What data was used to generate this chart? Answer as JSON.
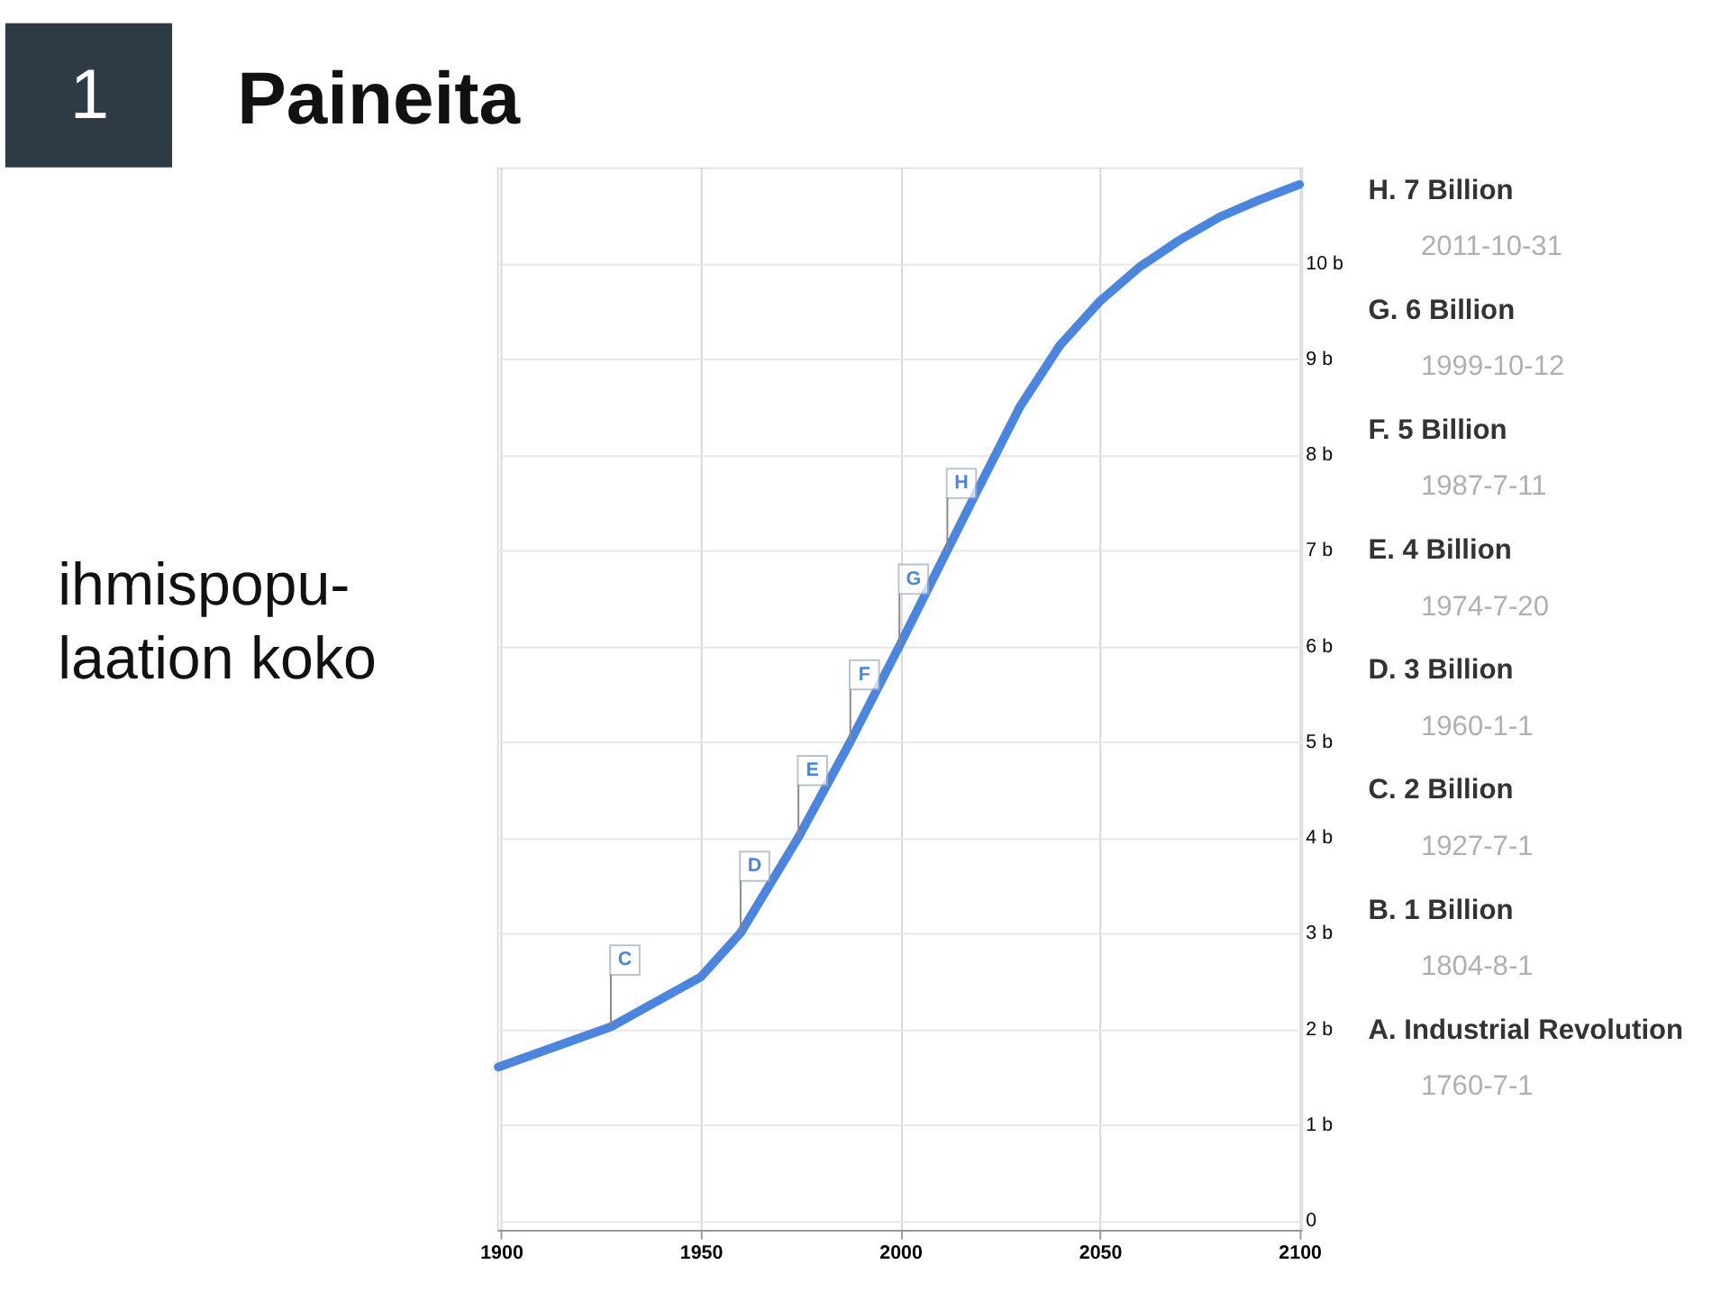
{
  "chart_data": [
    {
      "type": "line",
      "title": "Paineita",
      "ylabel": "ihmispopu-\nlaation koko",
      "color": "#4a86e0",
      "x": [
        1899.3,
        1927.5,
        1950,
        1960,
        1974.5,
        1987.5,
        1999.8,
        2011.8,
        2020,
        2030,
        2040,
        2050,
        2060,
        2070,
        2080,
        2090,
        2100
      ],
      "values": [
        1.6,
        2.02,
        2.54,
        3.0,
        4.0,
        5.0,
        6.0,
        7.0,
        7.68,
        8.5,
        9.14,
        9.6,
        9.96,
        10.24,
        10.48,
        10.66,
        10.82
      ],
      "xlim": [
        1899,
        2100.5
      ],
      "xticks": [
        1900,
        1950,
        2000,
        2050,
        2100
      ],
      "ylim": [
        -0.1,
        11
      ],
      "yticks": [
        {
          "value": 0,
          "label": "0"
        },
        {
          "value": 1,
          "label": "1 b"
        },
        {
          "value": 2,
          "label": "2 b"
        },
        {
          "value": 3,
          "label": "3 b"
        },
        {
          "value": 4,
          "label": "4 b"
        },
        {
          "value": 5,
          "label": "5 b"
        },
        {
          "value": 6,
          "label": "6 b"
        },
        {
          "value": 7,
          "label": "7 b"
        },
        {
          "value": 8,
          "label": "8 b"
        },
        {
          "value": 9,
          "label": "9 b"
        },
        {
          "value": 10,
          "label": "10 b"
        }
      ],
      "grid": true,
      "annotations": [
        "1",
        {
          "text": "C",
          "x": 1927.5,
          "y": 2.02
        },
        {
          "text": "D",
          "x": 1960,
          "y": 3.0
        },
        {
          "text": "E",
          "x": 1974.5,
          "y": 4.0
        },
        {
          "text": "F",
          "x": 1987.5,
          "y": 5.0
        },
        {
          "text": "G",
          "x": 1999.8,
          "y": 6.0
        },
        {
          "text": "H",
          "x": 2011.8,
          "y": 7.0
        }
      ]
    },
    {
      "type": "other",
      "annotations": [
        "H. 7 Billion",
        "2011-10-31",
        "G. 6 Billion",
        "1999-10-12",
        "F. 5 Billion",
        "1987-7-11",
        "E. 4 Billion",
        "1974-7-20",
        "D. 3 Billion",
        "1960-1-1",
        "C. 2 Billion",
        "1927-7-1",
        "B. 1 Billion",
        "1804-8-1",
        "A. Industrial Revolution",
        "1760-7-1"
      ]
    }
  ]
}
